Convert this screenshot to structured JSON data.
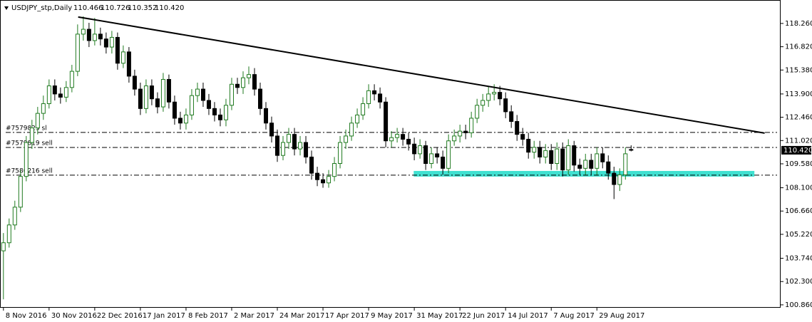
{
  "chart_data": {
    "type": "candlestick",
    "header": {
      "symbol": "USDJPY_stp,Daily",
      "quote": [
        "110.466",
        "110.726",
        "110.352",
        "110.420"
      ]
    },
    "bull_color": "#1f7a1f",
    "bear_color": "#000000",
    "open": [
      104.2,
      104.7,
      105.8,
      106.9,
      108.8,
      110.9,
      111.8,
      112.7,
      113.3,
      114.4,
      113.9,
      113.7,
      114.3,
      115.3,
      117.6,
      117.9,
      117.2,
      117.6,
      117.3,
      116.8,
      117.4,
      115.8,
      116.5,
      115.0,
      114.2,
      113.0,
      114.4,
      113.6,
      113.1,
      114.8,
      113.4,
      112.4,
      112.1,
      112.6,
      113.8,
      114.2,
      113.5,
      113.0,
      112.6,
      112.3,
      113.2,
      114.5,
      114.3,
      114.9,
      115.1,
      114.2,
      113.0,
      112.1,
      111.3,
      110.1,
      110.9,
      111.4,
      110.5,
      110.9,
      110.0,
      109.0,
      108.6,
      108.4,
      108.8,
      109.6,
      110.9,
      111.3,
      112.1,
      112.6,
      113.3,
      114.1,
      113.9,
      113.4,
      111.0,
      111.2,
      111.4,
      111.1,
      110.8,
      110.2,
      110.7,
      109.6,
      110.2,
      110.0,
      109.3,
      111.0,
      111.3,
      111.6,
      111.5,
      112.4,
      113.2,
      113.5,
      113.9,
      114.0,
      113.6,
      112.8,
      112.2,
      111.4,
      111.1,
      110.3,
      110.6,
      110.0,
      110.4,
      109.6,
      110.5,
      109.2,
      110.7,
      109.5,
      109.3,
      109.8,
      109.3,
      110.2,
      109.7,
      109.0,
      108.3,
      108.9,
      110.466
    ],
    "high": [
      105.3,
      106.2,
      107.3,
      109.2,
      111.3,
      112.3,
      113.1,
      113.8,
      114.8,
      114.8,
      114.3,
      114.7,
      115.7,
      118.2,
      118.7,
      118.3,
      118.6,
      118.0,
      117.7,
      117.8,
      117.7,
      116.9,
      116.8,
      115.4,
      114.6,
      114.8,
      114.8,
      114.0,
      115.2,
      115.1,
      113.8,
      112.8,
      113.0,
      114.2,
      114.6,
      114.6,
      113.9,
      113.4,
      113.0,
      113.6,
      114.9,
      114.9,
      115.3,
      115.6,
      115.5,
      114.6,
      113.4,
      112.5,
      111.7,
      111.3,
      111.8,
      111.8,
      111.3,
      111.3,
      110.4,
      109.4,
      109.0,
      109.2,
      110.0,
      111.3,
      111.7,
      112.5,
      113.0,
      113.7,
      114.5,
      114.5,
      114.3,
      113.7,
      111.6,
      111.8,
      111.8,
      111.5,
      111.2,
      111.1,
      111.0,
      110.6,
      110.6,
      110.4,
      111.4,
      111.7,
      112.0,
      112.0,
      112.8,
      113.6,
      113.9,
      114.4,
      114.5,
      114.4,
      114.0,
      113.2,
      112.6,
      111.8,
      111.5,
      111.0,
      111.0,
      110.8,
      110.8,
      110.9,
      110.9,
      111.1,
      111.0,
      109.9,
      110.2,
      110.2,
      110.6,
      110.6,
      110.1,
      109.4,
      109.3,
      110.6,
      110.726
    ],
    "low": [
      101.2,
      104.4,
      105.5,
      106.6,
      108.5,
      110.5,
      111.4,
      112.3,
      113.0,
      113.5,
      113.3,
      113.4,
      114.0,
      115.0,
      117.2,
      116.8,
      116.9,
      116.9,
      116.4,
      116.4,
      115.4,
      115.5,
      114.6,
      113.8,
      112.6,
      112.7,
      113.2,
      112.7,
      112.8,
      113.0,
      112.0,
      111.7,
      111.7,
      112.3,
      113.4,
      113.1,
      112.6,
      112.2,
      111.9,
      111.9,
      112.9,
      113.9,
      113.9,
      114.5,
      113.8,
      112.6,
      111.7,
      110.9,
      109.7,
      109.8,
      110.5,
      110.1,
      110.1,
      109.6,
      108.6,
      108.2,
      108.1,
      108.1,
      108.5,
      109.3,
      110.5,
      111.0,
      111.8,
      112.3,
      113.0,
      113.5,
      113.0,
      110.6,
      110.6,
      110.9,
      110.7,
      110.4,
      109.8,
      109.9,
      109.2,
      109.3,
      109.6,
      108.9,
      109.0,
      110.7,
      110.9,
      111.1,
      111.2,
      112.1,
      112.8,
      113.1,
      113.5,
      113.2,
      112.4,
      111.8,
      111.0,
      110.7,
      109.9,
      109.9,
      109.6,
      109.6,
      109.2,
      109.2,
      108.8,
      108.9,
      109.1,
      108.9,
      108.9,
      108.9,
      108.9,
      109.3,
      108.6,
      107.4,
      107.9,
      108.6,
      110.352
    ],
    "close": [
      104.7,
      105.8,
      106.9,
      108.8,
      110.9,
      111.8,
      112.7,
      113.3,
      114.4,
      113.9,
      113.7,
      114.3,
      115.3,
      117.6,
      117.9,
      117.2,
      117.6,
      117.3,
      116.8,
      117.4,
      115.8,
      116.5,
      115.0,
      114.2,
      113.0,
      114.4,
      113.6,
      113.1,
      114.8,
      113.4,
      112.4,
      112.1,
      112.6,
      113.8,
      114.2,
      113.5,
      113.0,
      112.6,
      112.3,
      113.2,
      114.5,
      114.3,
      114.9,
      115.1,
      114.2,
      113.0,
      112.1,
      111.3,
      110.1,
      110.9,
      111.4,
      110.5,
      110.9,
      110.0,
      109.0,
      108.6,
      108.4,
      108.8,
      109.6,
      110.9,
      111.3,
      112.1,
      112.6,
      113.3,
      114.1,
      113.9,
      113.4,
      111.0,
      111.2,
      111.4,
      111.1,
      110.8,
      110.2,
      110.7,
      109.6,
      110.2,
      110.0,
      109.3,
      111.0,
      111.3,
      111.6,
      111.5,
      112.4,
      113.2,
      113.5,
      113.9,
      114.0,
      113.6,
      112.8,
      112.2,
      111.4,
      111.1,
      110.3,
      110.6,
      110.0,
      110.4,
      109.6,
      110.5,
      109.2,
      110.7,
      109.5,
      109.3,
      109.8,
      109.3,
      110.2,
      109.7,
      109.0,
      108.3,
      108.9,
      110.2,
      110.42
    ],
    "last_price": {
      "value": 110.42,
      "label": "110.420"
    },
    "xlim": [
      -0.6,
      136.2
    ],
    "ylim": [
      100.68,
      119.71
    ],
    "xticks": [
      {
        "value": 0,
        "label": "8 Nov 2016"
      },
      {
        "value": 8,
        "label": "30 Nov 2016"
      },
      {
        "value": 16,
        "label": "22 Dec 2016"
      },
      {
        "value": 24,
        "label": "17 Jan 2017"
      },
      {
        "value": 32,
        "label": "8 Feb 2017"
      },
      {
        "value": 40,
        "label": "2 Mar 2017"
      },
      {
        "value": 48,
        "label": "24 Mar 2017"
      },
      {
        "value": 56,
        "label": "17 Apr 2017"
      },
      {
        "value": 64,
        "label": "9 May 2017"
      },
      {
        "value": 72,
        "label": "31 May 2017"
      },
      {
        "value": 80,
        "label": "22 Jun 2017"
      },
      {
        "value": 88,
        "label": "14 Jul 2017"
      },
      {
        "value": 96,
        "label": "7 Aug 2017"
      },
      {
        "value": 104,
        "label": "29 Aug 2017"
      }
    ],
    "yticks": [
      {
        "value": 100.86,
        "label": "100.860"
      },
      {
        "value": 102.3,
        "label": "102.300"
      },
      {
        "value": 103.74,
        "label": "103.740"
      },
      {
        "value": 105.22,
        "label": "105.220"
      },
      {
        "value": 106.66,
        "label": "106.660"
      },
      {
        "value": 108.1,
        "label": "108.100"
      },
      {
        "value": 109.58,
        "label": "109.580"
      },
      {
        "value": 111.02,
        "label": "111.020"
      },
      {
        "value": 112.46,
        "label": "112.460"
      },
      {
        "value": 113.9,
        "label": "113.900"
      },
      {
        "value": 115.38,
        "label": "115.380"
      },
      {
        "value": 116.82,
        "label": "116.820"
      },
      {
        "value": 118.26,
        "label": "118.260"
      }
    ],
    "trendline": {
      "x": [
        13.1,
        133.4
      ],
      "y": [
        118.66,
        111.48
      ],
      "color": "#000000"
    },
    "order_lines": [
      {
        "label": "#7579823 sl",
        "value": 111.52
      },
      {
        "label": "#7579819 sell",
        "value": 110.59
      },
      {
        "label": "#7586216 sell",
        "value": 108.88
      }
    ],
    "zone": {
      "x": [
        71.9,
        131.6
      ],
      "y": [
        108.79,
        109.14
      ],
      "color": "#40e0d0"
    }
  }
}
